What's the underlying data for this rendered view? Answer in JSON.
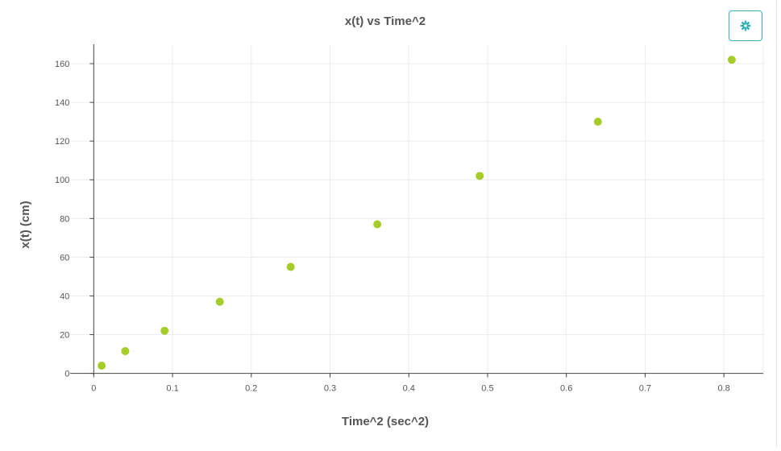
{
  "chart_data": {
    "type": "scatter",
    "title": "x(t) vs Time^2",
    "xlabel": "Time^2 (sec^2)",
    "ylabel": "x(t) (cm)",
    "xlim": [
      -0.03,
      0.85
    ],
    "ylim": [
      -1,
      170
    ],
    "xticks": [
      0,
      0.1,
      0.2,
      0.3,
      0.4,
      0.5,
      0.6,
      0.7,
      0.8
    ],
    "yticks": [
      0,
      20,
      40,
      60,
      80,
      100,
      120,
      140,
      160
    ],
    "grid": true,
    "marker_color": "#a4cd2a",
    "series": [
      {
        "x": [
          0.01,
          0.04,
          0.09,
          0.16,
          0.25,
          0.36,
          0.49,
          0.64,
          0.81
        ],
        "y": [
          4,
          11.5,
          22,
          37,
          55,
          77,
          102,
          130,
          162
        ]
      }
    ]
  },
  "toolbar": {
    "settings_icon": "gear-icon",
    "accent_color": "#37b3b8"
  }
}
